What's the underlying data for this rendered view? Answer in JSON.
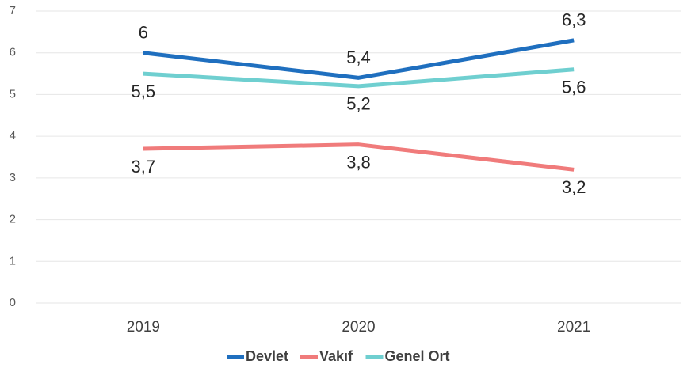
{
  "chart_data": {
    "type": "line",
    "categories": [
      "2019",
      "2020",
      "2021"
    ],
    "series": [
      {
        "name": "Devlet",
        "color": "#1f6fbf",
        "values": [
          6,
          5.4,
          6.3
        ],
        "value_labels": [
          "6",
          "5,4",
          "6,3"
        ]
      },
      {
        "name": "Vakıf",
        "color": "#f07b7b",
        "values": [
          3.7,
          3.8,
          3.2
        ],
        "value_labels": [
          "3,7",
          "3,8",
          "3,2"
        ]
      },
      {
        "name": "Genel Ort",
        "color": "#6fcfd0",
        "values": [
          5.5,
          5.2,
          5.6
        ],
        "value_labels": [
          "5,5",
          "5,2",
          "5,6"
        ]
      }
    ],
    "ylim": [
      0,
      7
    ],
    "yticks": [
      0,
      1,
      2,
      3,
      4,
      5,
      6,
      7
    ],
    "grid": true,
    "legend": "bottom"
  }
}
